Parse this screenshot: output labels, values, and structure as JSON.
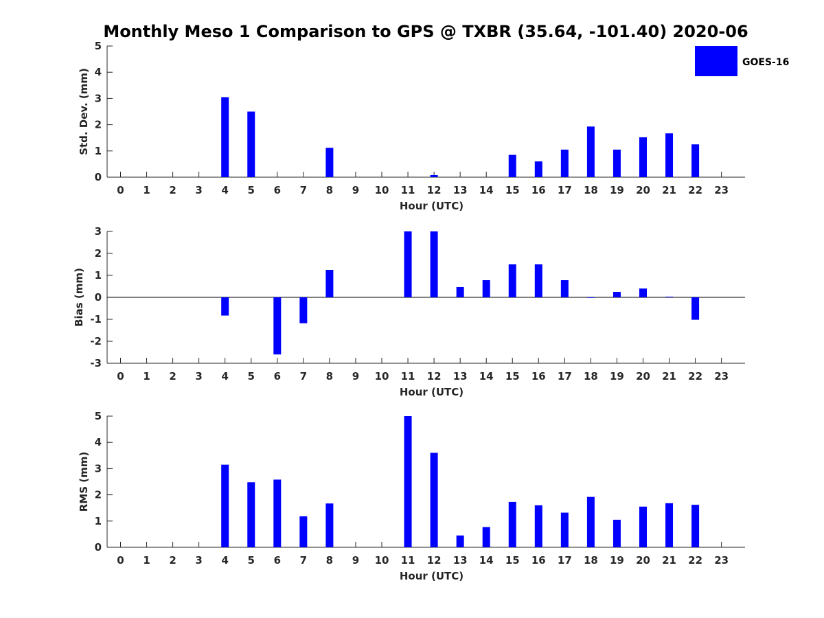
{
  "title": "Monthly Meso 1 Comparison to GPS @ TXBR (35.64, -101.40) 2020-06",
  "legend": {
    "label": "GOES-16",
    "color": "#0000ff",
    "position": "top-right"
  },
  "bar_color": "#0000ff",
  "chart_data": [
    {
      "type": "bar",
      "title": "Monthly Meso 1 Comparison to GPS @ TXBR (35.64, -101.40) 2020-06",
      "xlabel": "Hour (UTC)",
      "ylabel": "Std. Dev. (mm)",
      "categories": [
        "0",
        "1",
        "2",
        "3",
        "4",
        "5",
        "6",
        "7",
        "8",
        "9",
        "10",
        "11",
        "12",
        "13",
        "14",
        "15",
        "16",
        "17",
        "18",
        "19",
        "20",
        "21",
        "22",
        "23"
      ],
      "yticks": [
        0,
        1,
        2,
        3,
        4,
        5
      ],
      "ylim": [
        0,
        5
      ],
      "series": [
        {
          "name": "GOES-16",
          "values": [
            null,
            null,
            null,
            null,
            3.05,
            2.5,
            null,
            null,
            1.12,
            null,
            null,
            null,
            0.08,
            null,
            null,
            0.85,
            0.6,
            1.05,
            1.93,
            1.05,
            1.52,
            1.67,
            1.25,
            null
          ]
        }
      ]
    },
    {
      "type": "bar",
      "xlabel": "Hour (UTC)",
      "ylabel": "Bias (mm)",
      "categories": [
        "0",
        "1",
        "2",
        "3",
        "4",
        "5",
        "6",
        "7",
        "8",
        "9",
        "10",
        "11",
        "12",
        "13",
        "14",
        "15",
        "16",
        "17",
        "18",
        "19",
        "20",
        "21",
        "22",
        "23"
      ],
      "yticks": [
        -3,
        -2,
        -1,
        0,
        1,
        2,
        3
      ],
      "ylim": [
        -3,
        3
      ],
      "series": [
        {
          "name": "GOES-16",
          "values": [
            null,
            null,
            null,
            null,
            -0.83,
            null,
            -2.6,
            -1.18,
            1.25,
            null,
            null,
            3.0,
            3.0,
            0.47,
            0.78,
            1.5,
            1.5,
            0.78,
            0.0,
            0.25,
            0.4,
            0.03,
            -1.02,
            null
          ]
        }
      ]
    },
    {
      "type": "bar",
      "xlabel": "Hour (UTC)",
      "ylabel": "RMS (mm)",
      "categories": [
        "0",
        "1",
        "2",
        "3",
        "4",
        "5",
        "6",
        "7",
        "8",
        "9",
        "10",
        "11",
        "12",
        "13",
        "14",
        "15",
        "16",
        "17",
        "18",
        "19",
        "20",
        "21",
        "22",
        "23"
      ],
      "yticks": [
        0,
        1,
        2,
        3,
        4,
        5
      ],
      "ylim": [
        0,
        5
      ],
      "series": [
        {
          "name": "GOES-16",
          "values": [
            null,
            null,
            null,
            null,
            3.15,
            2.48,
            2.58,
            1.18,
            1.67,
            null,
            null,
            5.0,
            3.6,
            0.45,
            0.77,
            1.73,
            1.6,
            1.32,
            1.92,
            1.05,
            1.55,
            1.68,
            1.62,
            null
          ]
        }
      ]
    }
  ]
}
